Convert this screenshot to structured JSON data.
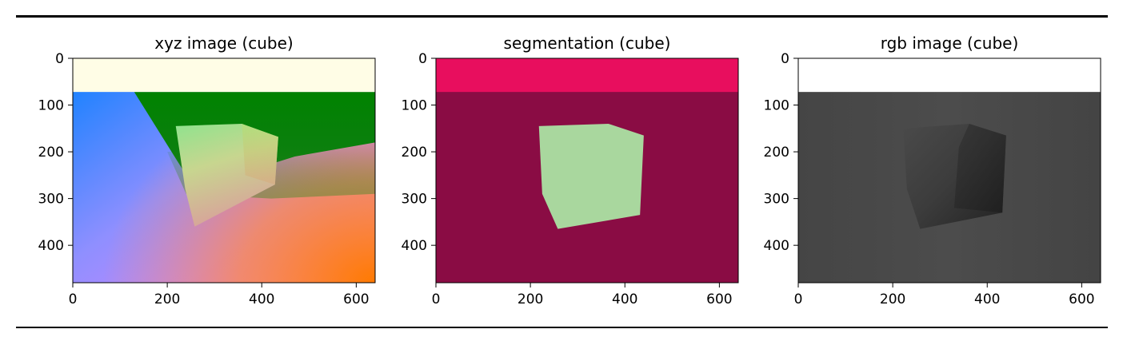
{
  "chart_data": [
    {
      "type": "image",
      "title": "xyz image (cube)",
      "xlim": [
        0,
        640
      ],
      "ylim": [
        480,
        0
      ],
      "xticks": [
        0,
        200,
        400,
        600
      ],
      "yticks": [
        0,
        100,
        200,
        300,
        400
      ],
      "image": {
        "horizon_y": 72,
        "sky_color": "#fffde6",
        "cube_polygon_xy": [
          [
            218,
            145
          ],
          [
            358,
            140
          ],
          [
            435,
            168
          ],
          [
            428,
            270
          ],
          [
            258,
            360
          ],
          [
            238,
            280
          ]
        ]
      }
    },
    {
      "type": "image",
      "title": "segmentation (cube)",
      "xlim": [
        0,
        640
      ],
      "ylim": [
        480,
        0
      ],
      "xticks": [
        0,
        200,
        400,
        600
      ],
      "yticks": [
        0,
        100,
        200,
        300,
        400
      ],
      "image": {
        "horizon_y": 72,
        "sky_color": "#e80e5e",
        "floor_color": "#8a0c44",
        "cube_color": "#a9d79e",
        "cube_polygon_xy": [
          [
            218,
            145
          ],
          [
            365,
            140
          ],
          [
            440,
            165
          ],
          [
            432,
            335
          ],
          [
            258,
            365
          ],
          [
            225,
            290
          ]
        ]
      }
    },
    {
      "type": "image",
      "title": "rgb image (cube)",
      "xlim": [
        0,
        640
      ],
      "ylim": [
        480,
        0
      ],
      "xticks": [
        0,
        200,
        400,
        600
      ],
      "yticks": [
        0,
        100,
        200,
        300,
        400
      ],
      "image": {
        "horizon_y": 72,
        "sky_color": "#ffffff",
        "floor_color": "#484848",
        "cube_polygon_xy": [
          [
            222,
            150
          ],
          [
            362,
            140
          ],
          [
            440,
            165
          ],
          [
            432,
            330
          ],
          [
            258,
            365
          ],
          [
            230,
            280
          ]
        ]
      }
    }
  ]
}
